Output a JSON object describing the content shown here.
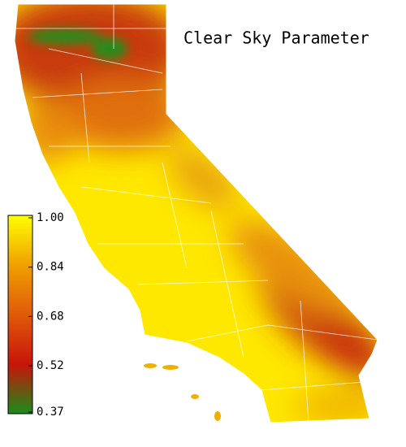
{
  "map": {
    "title": "Clear Sky Parameter",
    "colorbar": {
      "lim": [
        0.37,
        1.0
      ],
      "ticks": [
        {
          "value": 1.0,
          "label": "1.00"
        },
        0.84,
        0.68,
        0.52,
        0.37
      ],
      "colors": [
        "#1a8c1a",
        "#c8140a",
        "#e05a0a",
        "#f0a000",
        "#ffff00"
      ]
    }
  }
}
